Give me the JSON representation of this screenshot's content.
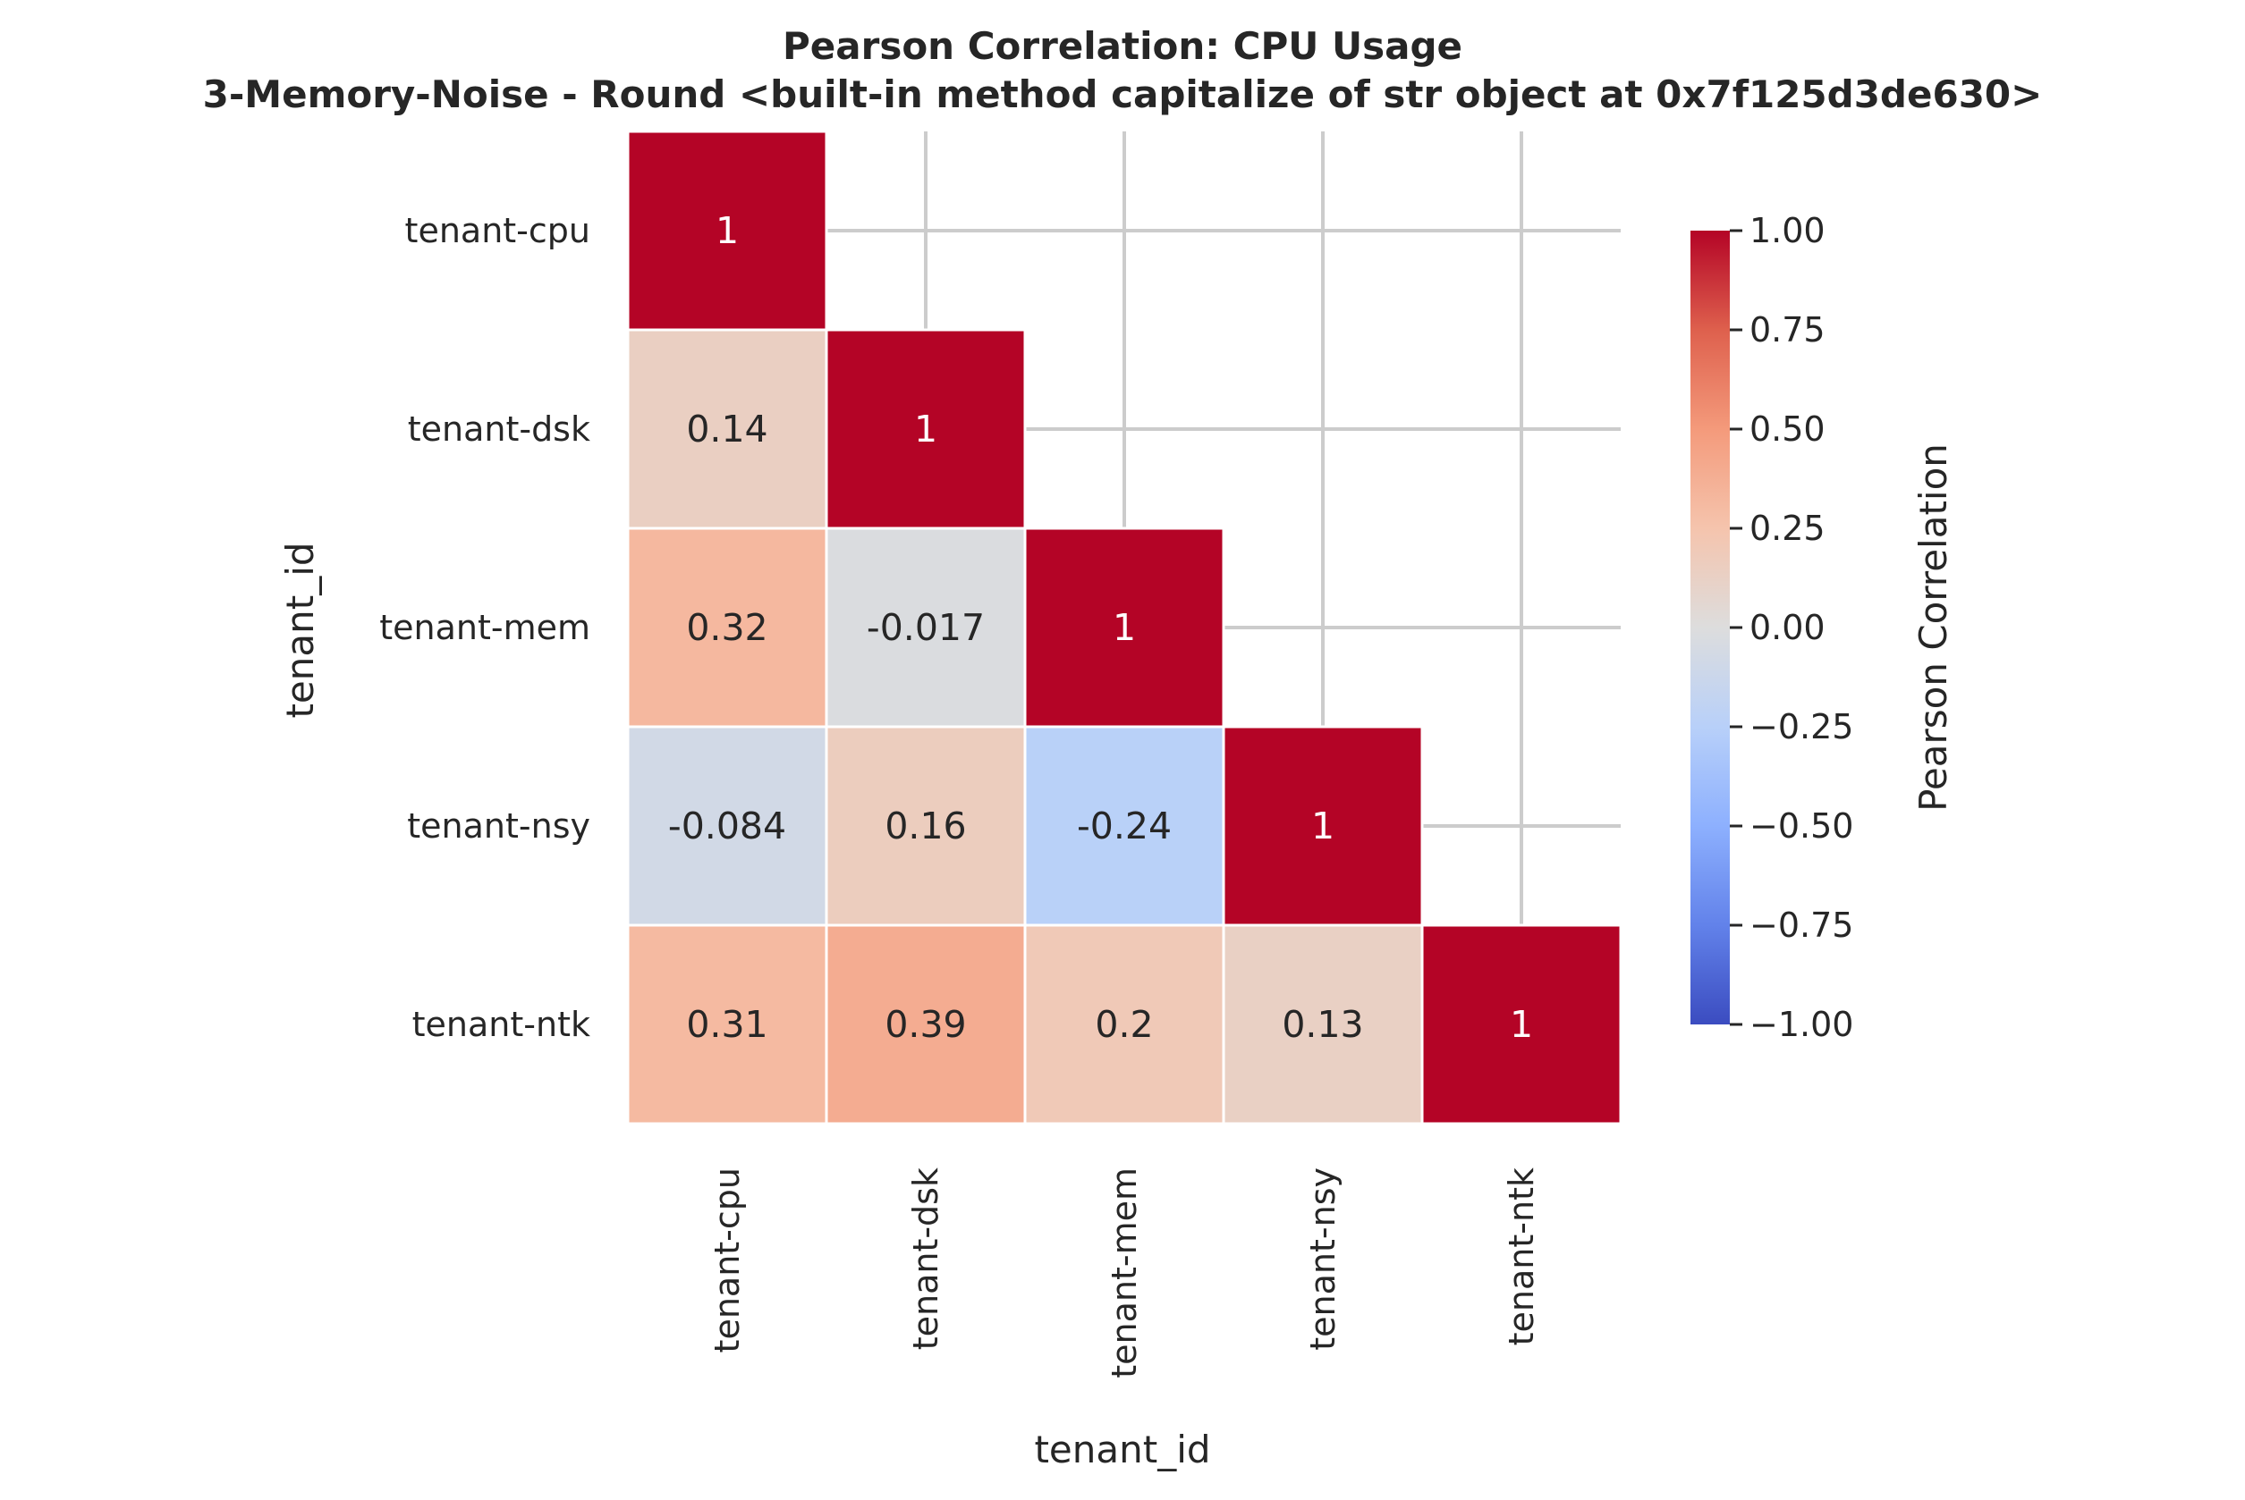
{
  "chart_data": {
    "type": "heatmap",
    "title": "Pearson Correlation: CPU Usage",
    "subtitle": "3-Memory-Noise - Round <built-in method capitalize of str object at 0x7f125d3de630>",
    "xlabel": "tenant_id",
    "ylabel": "tenant_id",
    "x_categories": [
      "tenant-cpu",
      "tenant-dsk",
      "tenant-mem",
      "tenant-nsy",
      "tenant-ntk"
    ],
    "y_categories": [
      "tenant-cpu",
      "tenant-dsk",
      "tenant-mem",
      "tenant-nsy",
      "tenant-ntk"
    ],
    "mask": "upper triangle",
    "cells": [
      {
        "row": 0,
        "col": 0,
        "value": 1,
        "label": "1"
      },
      {
        "row": 1,
        "col": 0,
        "value": 0.14,
        "label": "0.14"
      },
      {
        "row": 1,
        "col": 1,
        "value": 1,
        "label": "1"
      },
      {
        "row": 2,
        "col": 0,
        "value": 0.32,
        "label": "0.32"
      },
      {
        "row": 2,
        "col": 1,
        "value": -0.017,
        "label": "-0.017"
      },
      {
        "row": 2,
        "col": 2,
        "value": 1,
        "label": "1"
      },
      {
        "row": 3,
        "col": 0,
        "value": -0.084,
        "label": "-0.084"
      },
      {
        "row": 3,
        "col": 1,
        "value": 0.16,
        "label": "0.16"
      },
      {
        "row": 3,
        "col": 2,
        "value": -0.24,
        "label": "-0.24"
      },
      {
        "row": 3,
        "col": 3,
        "value": 1,
        "label": "1"
      },
      {
        "row": 4,
        "col": 0,
        "value": 0.31,
        "label": "0.31"
      },
      {
        "row": 4,
        "col": 1,
        "value": 0.39,
        "label": "0.39"
      },
      {
        "row": 4,
        "col": 2,
        "value": 0.2,
        "label": "0.2"
      },
      {
        "row": 4,
        "col": 3,
        "value": 0.13,
        "label": "0.13"
      },
      {
        "row": 4,
        "col": 4,
        "value": 1,
        "label": "1"
      }
    ],
    "colormap": "coolwarm",
    "vmin": -1,
    "vmax": 1,
    "colorbar": {
      "label": "Pearson Correlation",
      "ticks": [
        1.0,
        0.75,
        0.5,
        0.25,
        0.0,
        -0.25,
        -0.5,
        -0.75,
        -1.0
      ],
      "tick_labels": [
        "1.00",
        "0.75",
        "0.50",
        "0.25",
        "0.00",
        "−0.25",
        "−0.50",
        "−0.75",
        "−1.00"
      ]
    },
    "grid": true
  }
}
